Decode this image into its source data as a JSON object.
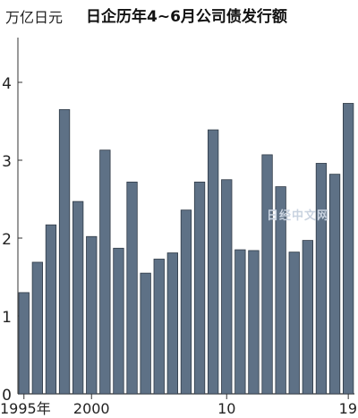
{
  "chart_data": {
    "type": "bar",
    "title": "日企历年4~6月公司债发行额",
    "ylabel": "万亿日元",
    "xlabel": "",
    "categories": [
      "1995",
      "1996",
      "1997",
      "1998",
      "1999",
      "2000",
      "2001",
      "2002",
      "2003",
      "2004",
      "2005",
      "2006",
      "2007",
      "2008",
      "2009",
      "2010",
      "2011",
      "2012",
      "2013",
      "2014",
      "2015",
      "2016",
      "2017",
      "2018",
      "2019"
    ],
    "values": [
      1.3,
      1.69,
      2.17,
      3.65,
      2.47,
      2.02,
      3.13,
      1.87,
      2.72,
      1.55,
      1.73,
      1.81,
      2.36,
      2.72,
      3.39,
      2.75,
      1.85,
      1.84,
      3.07,
      2.66,
      1.82,
      1.97,
      2.96,
      2.82,
      3.73
    ],
    "ylim": [
      0,
      4.5
    ],
    "yticks": [
      "0",
      "1",
      "2",
      "3",
      "4"
    ],
    "xtick_labels": [
      {
        "category": "1995",
        "label": "1995年"
      },
      {
        "category": "2000",
        "label": "2000"
      },
      {
        "category": "2010",
        "label": "10"
      },
      {
        "category": "2019",
        "label": "19"
      }
    ],
    "bar_color": "#5e7186",
    "grid": false
  },
  "watermark": "日经中文网"
}
